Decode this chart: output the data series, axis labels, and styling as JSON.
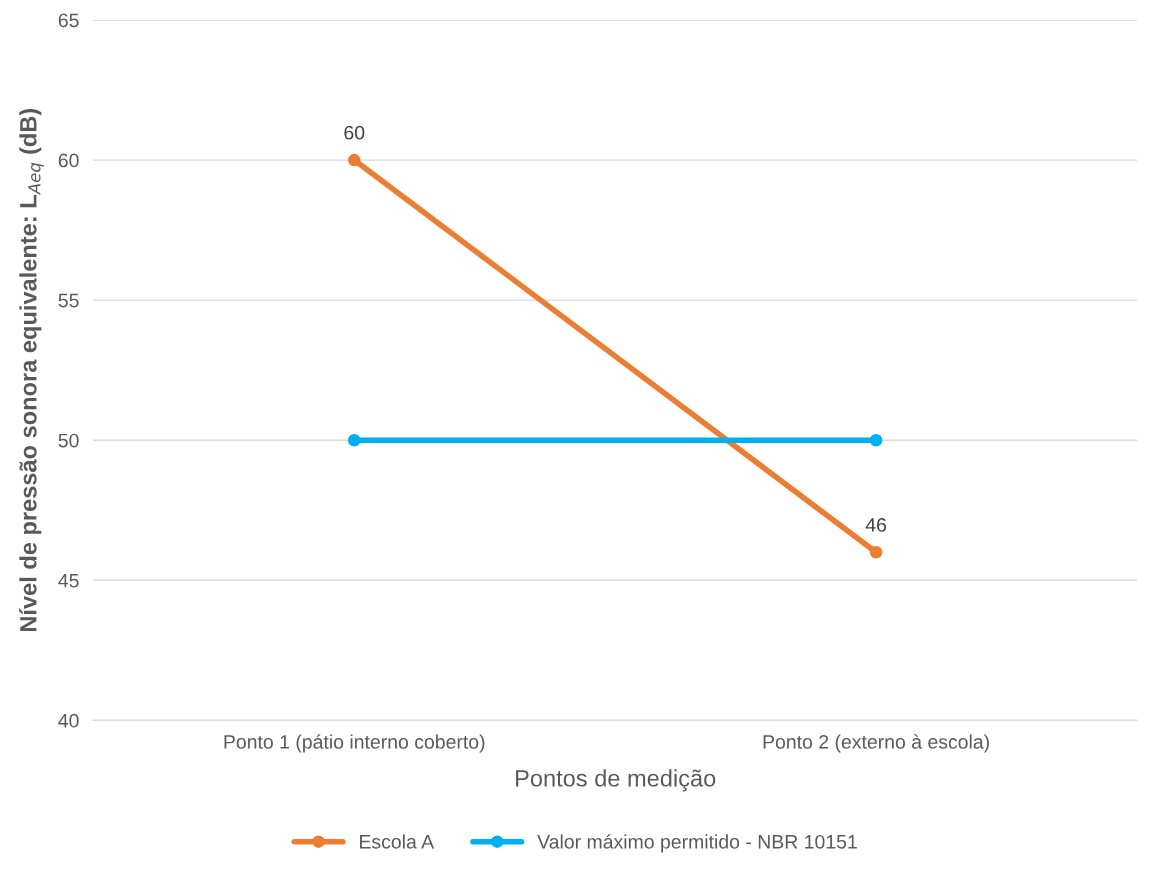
{
  "chart_data": {
    "type": "line",
    "xlabel": "Pontos de medição",
    "ylabel": "Nível de pressão sonora equivalente: L$_{Aeq}$ (dB)",
    "categories": [
      "Ponto 1 (pátio interno coberto)",
      "Ponto 2 (externo à escola)"
    ],
    "series": [
      {
        "name": "Escola A",
        "color": "#ed7d31",
        "values": [
          60,
          46
        ],
        "value_labels": [
          "60",
          "46"
        ]
      },
      {
        "name": "Valor máximo permitido - NBR 10151",
        "color": "#00b0f0",
        "values": [
          50,
          50
        ]
      }
    ],
    "ylim": [
      40,
      65
    ],
    "yticks": [
      40,
      45,
      50,
      55,
      60,
      65
    ],
    "grid": "y",
    "legend": "bottom",
    "marker": "circle",
    "line_style": "solid"
  }
}
